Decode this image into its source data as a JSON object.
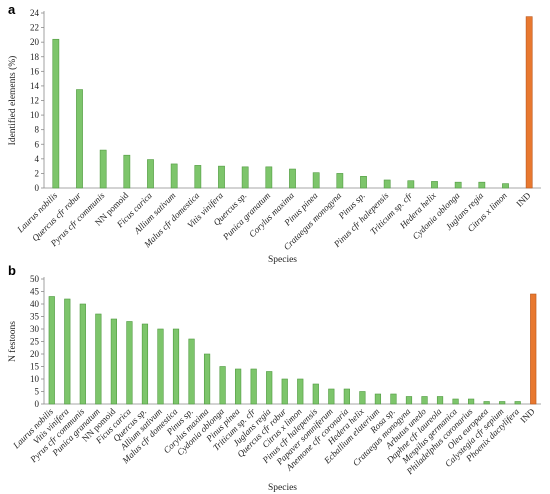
{
  "chart_data": [
    {
      "panel": "a",
      "type": "bar",
      "xlabel": "Species",
      "ylabel": "Identified elements (%)",
      "ylim": [
        0,
        24
      ],
      "yticks": [
        0,
        2,
        4,
        6,
        8,
        10,
        12,
        14,
        16,
        18,
        20,
        22,
        24
      ],
      "grid": false,
      "categories": [
        "Laurus nobilis",
        "Quercus cfr robur",
        "Pyrus cfr communis",
        "NN pomoid",
        "Ficus carica",
        "Allium sativum",
        "Malus cfr domestica",
        "Vitis vinifera",
        "Quercus sp.",
        "Punica granatum",
        "Corylus maxima",
        "Pinus pinea",
        "Crataegus monogyna",
        "Pinus sp.",
        "Pinus cfr halepensis",
        "Triticum sp. cfr",
        "Hedera helix",
        "Cydonia oblonga",
        "Juglans regia",
        "Citrus x limon",
        "IND"
      ],
      "values": [
        20.4,
        13.5,
        5.2,
        4.5,
        3.9,
        3.3,
        3.1,
        3.0,
        2.9,
        2.9,
        2.6,
        2.1,
        2.0,
        1.6,
        1.1,
        1.0,
        0.9,
        0.8,
        0.8,
        0.6,
        23.5
      ],
      "colors": {
        "species": "#7dc56b",
        "ind": "#e8782f"
      }
    },
    {
      "panel": "b",
      "type": "bar",
      "xlabel": "Species",
      "ylabel": "N festoons",
      "ylim": [
        0,
        50
      ],
      "yticks": [
        0,
        5,
        10,
        15,
        20,
        25,
        30,
        35,
        40,
        45,
        50
      ],
      "grid": false,
      "categories": [
        "Laurus nobilis",
        "Vitis vinifera",
        "Pyrus cfr communis",
        "Punica granatum",
        "NN pomoid",
        "Ficus carica",
        "Quercus sp.",
        "Allium sativum",
        "Malus cfr domestica",
        "Pinus sp.",
        "Corylus maxima",
        "Cydonia oblonga",
        "Pinus pinea",
        "Triticum sp. cfr",
        "Juglans regia",
        "Quercus cfr robur",
        "Citrus x limon",
        "Pinus cfr halepensis",
        "Papaver somniferum",
        "Anemone cfr coronaria",
        "Hedera helix",
        "Ecballium elaterium",
        "Rosa sp.",
        "Crataegus monogyna",
        "Arbutus unedo",
        "Daphne cfr laureola",
        "Mespilus germanica",
        "Philadelphus coronarius",
        "Olea europaea",
        "Calystegia cfr sepium",
        "Phoenix dactylifera",
        "IND"
      ],
      "values": [
        43,
        42,
        40,
        36,
        34,
        33,
        32,
        30,
        30,
        26,
        20,
        15,
        14,
        14,
        13,
        10,
        10,
        8,
        6,
        6,
        5,
        4,
        4,
        3,
        3,
        3,
        2,
        2,
        1,
        1,
        1,
        44
      ],
      "colors": {
        "species": "#7dc56b",
        "ind": "#e8782f"
      }
    }
  ]
}
